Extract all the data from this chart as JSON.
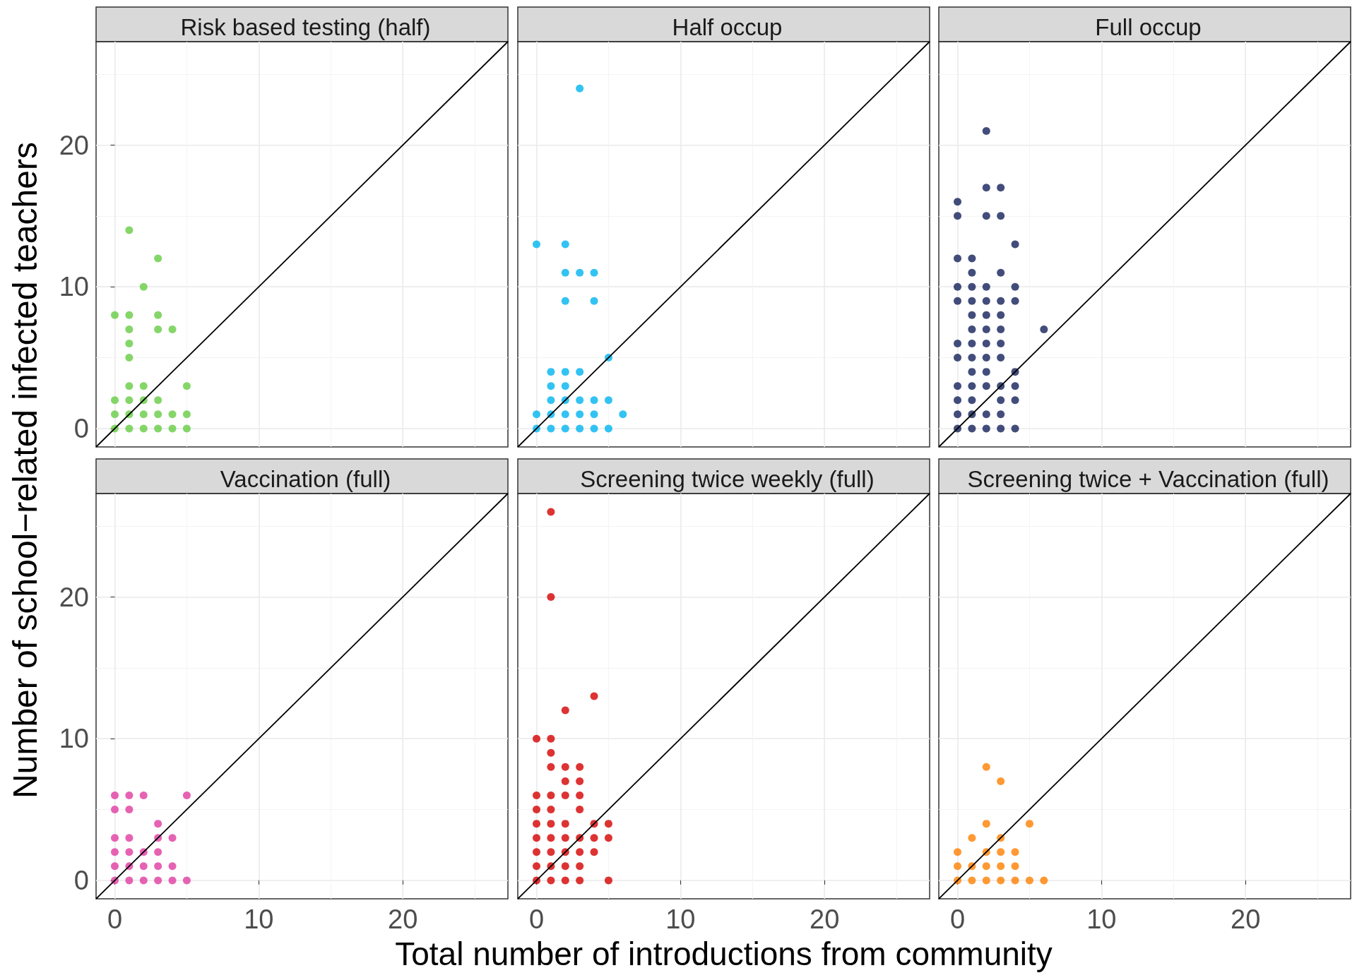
{
  "chart_data": [
    {
      "type": "scatter",
      "title": "Risk based testing (half)",
      "ylabel": "Number of school−related infected teachers",
      "xlim": [
        -1.3,
        27.3
      ],
      "ylim": [
        -1.3,
        27.3
      ],
      "xticks": [
        0,
        {
          "value": 5,
          "label": null
        },
        10,
        {
          "value": 15,
          "label": null
        },
        20,
        {
          "value": 25,
          "label": null
        }
      ],
      "yticks": [
        0,
        {
          "value": 5,
          "label": null
        },
        10,
        {
          "value": 15,
          "label": null
        },
        20,
        {
          "value": 25,
          "label": null
        }
      ],
      "tick_labels": "y",
      "grid": true,
      "marker": "circle",
      "series": [
        {
          "color": "#66cc44",
          "x": [
            1,
            3,
            2,
            0,
            1,
            3,
            1,
            3,
            4,
            1,
            1,
            1,
            2,
            5,
            0,
            1,
            2,
            3,
            0,
            1,
            2,
            3,
            4,
            5,
            0,
            1,
            2,
            3,
            4,
            5
          ],
          "values": [
            14,
            12,
            10,
            8,
            8,
            8,
            7,
            7,
            7,
            6,
            5,
            3,
            3,
            3,
            2,
            2,
            2,
            2,
            1,
            1,
            1,
            1,
            1,
            1,
            0,
            0,
            0,
            0,
            0,
            0
          ]
        },
        {
          "type": "line",
          "marker": "none",
          "color": "#000000",
          "x": [
            -1.3,
            27.3
          ],
          "values": [
            -1.3,
            27.3
          ]
        }
      ]
    },
    {
      "type": "scatter",
      "title": "Half occup",
      "xlim": [
        -1.3,
        27.3
      ],
      "ylim": [
        -1.3,
        27.3
      ],
      "xticks": [
        0,
        {
          "value": 5,
          "label": null
        },
        10,
        {
          "value": 15,
          "label": null
        },
        20,
        {
          "value": 25,
          "label": null
        }
      ],
      "yticks": [
        0,
        {
          "value": 5,
          "label": null
        },
        10,
        {
          "value": 15,
          "label": null
        },
        20,
        {
          "value": 25,
          "label": null
        }
      ],
      "tick_labels": false,
      "grid": true,
      "marker": "circle",
      "series": [
        {
          "color": "#00b4f0",
          "x": [
            3,
            0,
            2,
            2,
            3,
            4,
            2,
            4,
            5,
            1,
            2,
            3,
            1,
            2,
            1,
            2,
            3,
            4,
            5,
            0,
            1,
            2,
            3,
            4,
            6,
            0,
            1,
            2,
            3,
            4,
            5
          ],
          "values": [
            24,
            13,
            13,
            11,
            11,
            11,
            9,
            9,
            5,
            4,
            4,
            4,
            3,
            3,
            2,
            2,
            2,
            2,
            2,
            1,
            1,
            1,
            1,
            1,
            1,
            0,
            0,
            0,
            0,
            0,
            0
          ]
        },
        {
          "type": "line",
          "marker": "none",
          "color": "#000000",
          "x": [
            -1.3,
            27.3
          ],
          "values": [
            -1.3,
            27.3
          ]
        }
      ]
    },
    {
      "type": "scatter",
      "title": "Full occup",
      "xlim": [
        -1.3,
        27.3
      ],
      "ylim": [
        -1.3,
        27.3
      ],
      "xticks": [
        0,
        {
          "value": 5,
          "label": null
        },
        10,
        {
          "value": 15,
          "label": null
        },
        20,
        {
          "value": 25,
          "label": null
        }
      ],
      "yticks": [
        0,
        {
          "value": 5,
          "label": null
        },
        10,
        {
          "value": 15,
          "label": null
        },
        20,
        {
          "value": 25,
          "label": null
        }
      ],
      "tick_labels": false,
      "grid": true,
      "marker": "circle",
      "series": [
        {
          "color": "#13215a",
          "x": [
            2,
            2,
            3,
            0,
            0,
            2,
            3,
            4,
            0,
            1,
            1,
            3,
            0,
            1,
            2,
            4,
            0,
            1,
            2,
            3,
            4,
            1,
            2,
            3,
            1,
            2,
            3,
            6,
            0,
            1,
            2,
            3,
            0,
            1,
            2,
            3,
            1,
            2,
            4,
            0,
            1,
            2,
            3,
            4,
            0,
            1,
            3,
            4,
            0,
            1,
            2,
            3,
            0,
            1,
            2,
            3,
            4
          ],
          "values": [
            21,
            17,
            17,
            16,
            15,
            15,
            15,
            13,
            12,
            12,
            11,
            11,
            10,
            10,
            10,
            10,
            9,
            9,
            9,
            9,
            9,
            8,
            8,
            8,
            7,
            7,
            7,
            7,
            6,
            6,
            6,
            6,
            5,
            5,
            5,
            5,
            4,
            4,
            4,
            3,
            3,
            3,
            3,
            3,
            2,
            2,
            2,
            2,
            1,
            1,
            1,
            1,
            0,
            0,
            0,
            0,
            0
          ]
        },
        {
          "type": "line",
          "marker": "none",
          "color": "#000000",
          "x": [
            -1.3,
            27.3
          ],
          "values": [
            -1.3,
            27.3
          ]
        }
      ]
    },
    {
      "type": "scatter",
      "title": "Vaccination (full)",
      "xlim": [
        -1.3,
        27.3
      ],
      "ylim": [
        -1.3,
        27.3
      ],
      "xticks": [
        0,
        {
          "value": 5,
          "label": null
        },
        10,
        {
          "value": 15,
          "label": null
        },
        20,
        {
          "value": 25,
          "label": null
        }
      ],
      "yticks": [
        0,
        {
          "value": 5,
          "label": null
        },
        10,
        {
          "value": 15,
          "label": null
        },
        20,
        {
          "value": 25,
          "label": null
        }
      ],
      "grid": true,
      "marker": "circle",
      "series": [
        {
          "color": "#e03ca0",
          "x": [
            0,
            1,
            2,
            5,
            0,
            1,
            3,
            0,
            1,
            3,
            4,
            0,
            1,
            2,
            3,
            0,
            1,
            2,
            3,
            4,
            0,
            1,
            2,
            3,
            4,
            5
          ],
          "values": [
            6,
            6,
            6,
            6,
            5,
            5,
            4,
            3,
            3,
            3,
            3,
            2,
            2,
            2,
            2,
            1,
            1,
            1,
            1,
            1,
            0,
            0,
            0,
            0,
            0,
            0
          ]
        },
        {
          "type": "line",
          "marker": "none",
          "color": "#000000",
          "x": [
            -1.3,
            27.3
          ],
          "values": [
            -1.3,
            27.3
          ]
        }
      ]
    },
    {
      "type": "scatter",
      "title": "Screening twice weekly (full)",
      "xlabel": "Total number of introductions from community",
      "xlim": [
        -1.3,
        27.3
      ],
      "ylim": [
        -1.3,
        27.3
      ],
      "xticks": [
        0,
        {
          "value": 5,
          "label": null
        },
        10,
        {
          "value": 15,
          "label": null
        },
        20,
        {
          "value": 25,
          "label": null
        }
      ],
      "yticks": [
        0,
        {
          "value": 5,
          "label": null
        },
        10,
        {
          "value": 15,
          "label": null
        },
        20,
        {
          "value": 25,
          "label": null
        }
      ],
      "tick_labels": "x",
      "grid": true,
      "marker": "circle",
      "series": [
        {
          "color": "#d40000",
          "x": [
            1,
            1,
            4,
            2,
            0,
            1,
            1,
            1,
            2,
            3,
            2,
            3,
            0,
            1,
            2,
            3,
            0,
            1,
            3,
            0,
            1,
            2,
            4,
            5,
            0,
            1,
            2,
            3,
            4,
            5,
            0,
            1,
            2,
            3,
            4,
            0,
            1,
            2,
            3,
            0,
            1,
            2,
            3,
            5
          ],
          "values": [
            26,
            20,
            13,
            12,
            10,
            10,
            9,
            8,
            8,
            8,
            7,
            7,
            6,
            6,
            6,
            6,
            5,
            5,
            5,
            4,
            4,
            4,
            4,
            4,
            3,
            3,
            3,
            3,
            3,
            3,
            2,
            2,
            2,
            2,
            2,
            1,
            1,
            1,
            1,
            0,
            0,
            0,
            0,
            0
          ]
        },
        {
          "type": "line",
          "marker": "none",
          "color": "#000000",
          "x": [
            -1.3,
            27.3
          ],
          "values": [
            -1.3,
            27.3
          ]
        }
      ]
    },
    {
      "type": "scatter",
      "title": "Screening twice + Vaccination (full)",
      "xlim": [
        -1.3,
        27.3
      ],
      "ylim": [
        -1.3,
        27.3
      ],
      "xticks": [
        0,
        {
          "value": 5,
          "label": null
        },
        10,
        {
          "value": 15,
          "label": null
        },
        20,
        {
          "value": 25,
          "label": null
        }
      ],
      "yticks": [
        0,
        {
          "value": 5,
          "label": null
        },
        10,
        {
          "value": 15,
          "label": null
        },
        20,
        {
          "value": 25,
          "label": null
        }
      ],
      "tick_labels": "x",
      "grid": true,
      "marker": "circle",
      "series": [
        {
          "color": "#ff8000",
          "x": [
            2,
            3,
            2,
            5,
            1,
            3,
            0,
            2,
            3,
            4,
            0,
            1,
            2,
            3,
            4,
            0,
            1,
            2,
            3,
            4,
            5,
            6
          ],
          "values": [
            8,
            7,
            4,
            4,
            3,
            3,
            2,
            2,
            2,
            2,
            1,
            1,
            1,
            1,
            1,
            0,
            0,
            0,
            0,
            0,
            0,
            0
          ]
        },
        {
          "type": "line",
          "marker": "none",
          "color": "#000000",
          "x": [
            -1.3,
            27.3
          ],
          "values": [
            -1.3,
            27.3
          ]
        }
      ]
    }
  ]
}
